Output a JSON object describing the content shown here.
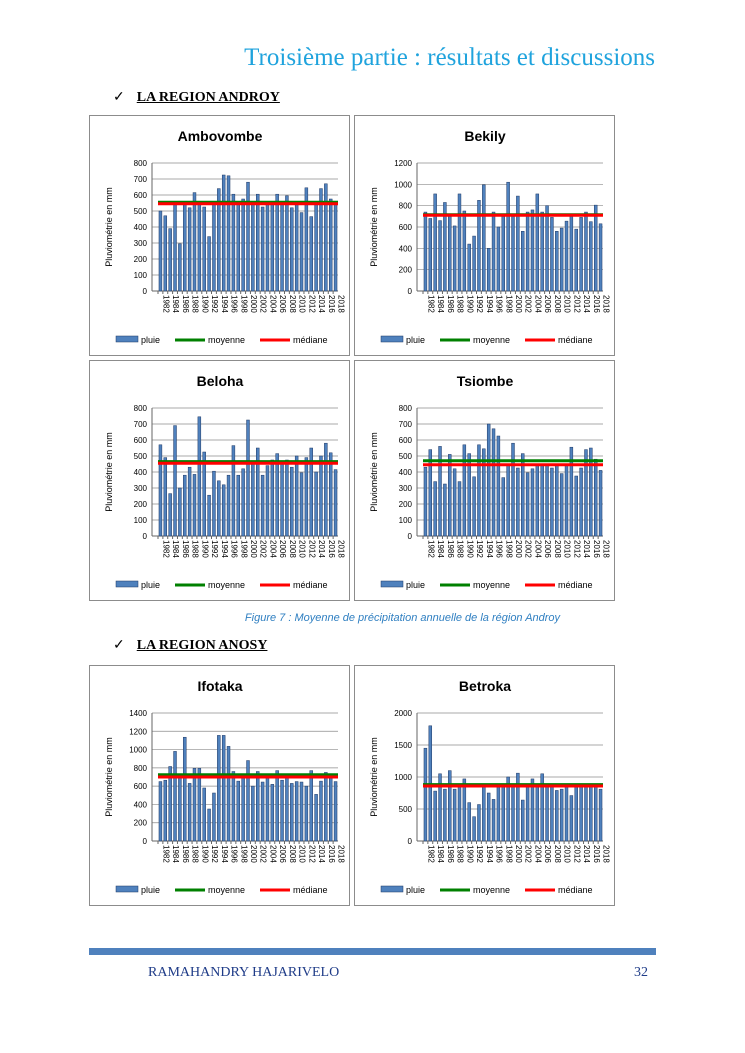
{
  "header": {
    "title": "Troisième partie : résultats et discussions"
  },
  "sections": [
    {
      "check": "✓",
      "label": "LA REGION ANDROY"
    },
    {
      "check": "✓",
      "label": "LA REGION ANOSY"
    }
  ],
  "caption": "Figure 7 : Moyenne de précipitation annuelle de la région Androy",
  "footer": {
    "author": "RAMAHANDRY HAJARIVELO",
    "page": "32"
  },
  "colors": {
    "bar": "#4f81bd",
    "mean": "#008000",
    "median": "#ff0000"
  },
  "chart_data": [
    {
      "type": "bar",
      "title": "Ambovombe",
      "ylabel": "Pluviométrie en mm",
      "ylim": [
        0,
        800
      ],
      "yticks": [
        0,
        100,
        200,
        300,
        400,
        500,
        600,
        700,
        800
      ],
      "start_year": 1982,
      "end_year": 2018,
      "legend": [
        "pluie",
        "moyenne",
        "médiane"
      ],
      "legend_position": "bottom",
      "values": [
        500,
        470,
        390,
        540,
        295,
        540,
        520,
        615,
        540,
        525,
        340,
        540,
        640,
        725,
        720,
        605,
        550,
        575,
        680,
        540,
        605,
        525,
        540,
        550,
        605,
        540,
        595,
        520,
        540,
        490,
        645,
        465,
        545,
        640,
        670,
        575,
        555
      ],
      "mean": 555,
      "median": 545
    },
    {
      "type": "bar",
      "title": "Bekily",
      "ylabel": "Pluviométrie en mm",
      "ylim": [
        0,
        1200
      ],
      "yticks": [
        0,
        200,
        400,
        600,
        800,
        1000,
        1200
      ],
      "start_year": 1982,
      "end_year": 2018,
      "legend": [
        "pluie",
        "moyenne",
        "médiane"
      ],
      "legend_position": "bottom",
      "values": [
        740,
        680,
        910,
        660,
        830,
        700,
        610,
        910,
        750,
        440,
        515,
        850,
        995,
        400,
        740,
        600,
        700,
        1020,
        700,
        890,
        560,
        740,
        760,
        910,
        740,
        800,
        690,
        560,
        590,
        655,
        700,
        580,
        690,
        740,
        650,
        805,
        630
      ],
      "mean": 715,
      "median": 710
    },
    {
      "type": "bar",
      "title": "Beloha",
      "ylabel": "Pluviométrie en mm",
      "ylim": [
        0,
        800
      ],
      "yticks": [
        0,
        100,
        200,
        300,
        400,
        500,
        600,
        700,
        800
      ],
      "start_year": 1982,
      "end_year": 2018,
      "legend": [
        "pluie",
        "moyenne",
        "médiane"
      ],
      "legend_position": "bottom",
      "values": [
        570,
        490,
        265,
        690,
        300,
        380,
        430,
        385,
        745,
        525,
        255,
        405,
        345,
        320,
        380,
        565,
        380,
        420,
        725,
        450,
        550,
        380,
        440,
        475,
        515,
        460,
        475,
        430,
        500,
        395,
        490,
        550,
        400,
        500,
        580,
        520,
        415
      ],
      "mean": 465,
      "median": 455
    },
    {
      "type": "bar",
      "title": "Tsiombe",
      "ylabel": "Pluviométrie en mm",
      "ylim": [
        0,
        800
      ],
      "yticks": [
        0,
        100,
        200,
        300,
        400,
        500,
        600,
        700,
        800
      ],
      "start_year": 1982,
      "end_year": 2018,
      "legend": [
        "pluie",
        "moyenne",
        "médiane"
      ],
      "legend_position": "bottom",
      "values": [
        430,
        540,
        340,
        560,
        325,
        510,
        420,
        340,
        570,
        515,
        370,
        570,
        545,
        700,
        670,
        625,
        365,
        440,
        580,
        425,
        515,
        395,
        420,
        445,
        445,
        440,
        425,
        440,
        390,
        445,
        555,
        375,
        425,
        540,
        550,
        480,
        410
      ],
      "mean": 470,
      "median": 445
    },
    {
      "type": "bar",
      "title": "Ifotaka",
      "ylabel": "Pluviométrie en mm",
      "ylim": [
        0,
        1400
      ],
      "yticks": [
        0,
        200,
        400,
        600,
        800,
        1000,
        1200,
        1400
      ],
      "start_year": 1982,
      "end_year": 2018,
      "legend": [
        "pluie",
        "moyenne",
        "médiane"
      ],
      "legend_position": "bottom",
      "values": [
        650,
        665,
        815,
        980,
        700,
        1135,
        630,
        795,
        795,
        580,
        350,
        525,
        1155,
        1155,
        1035,
        760,
        655,
        700,
        880,
        600,
        760,
        645,
        700,
        620,
        770,
        665,
        700,
        630,
        650,
        645,
        600,
        770,
        510,
        655,
        750,
        700,
        650
      ],
      "mean": 725,
      "median": 700
    },
    {
      "type": "bar",
      "title": "Betroka",
      "ylabel": "Pluviométrie en mm",
      "ylim": [
        0,
        2000
      ],
      "yticks": [
        0,
        500,
        1000,
        1500,
        2000
      ],
      "start_year": 1982,
      "end_year": 2018,
      "legend": [
        "pluie",
        "moyenne",
        "médiane"
      ],
      "legend_position": "bottom",
      "values": [
        1450,
        1800,
        780,
        1050,
        810,
        1100,
        810,
        870,
        970,
        600,
        380,
        570,
        870,
        750,
        650,
        870,
        870,
        1000,
        870,
        1060,
        640,
        870,
        970,
        870,
        1050,
        870,
        870,
        790,
        810,
        870,
        710,
        870,
        870,
        870,
        870,
        870,
        810
      ],
      "mean": 880,
      "median": 860
    }
  ]
}
